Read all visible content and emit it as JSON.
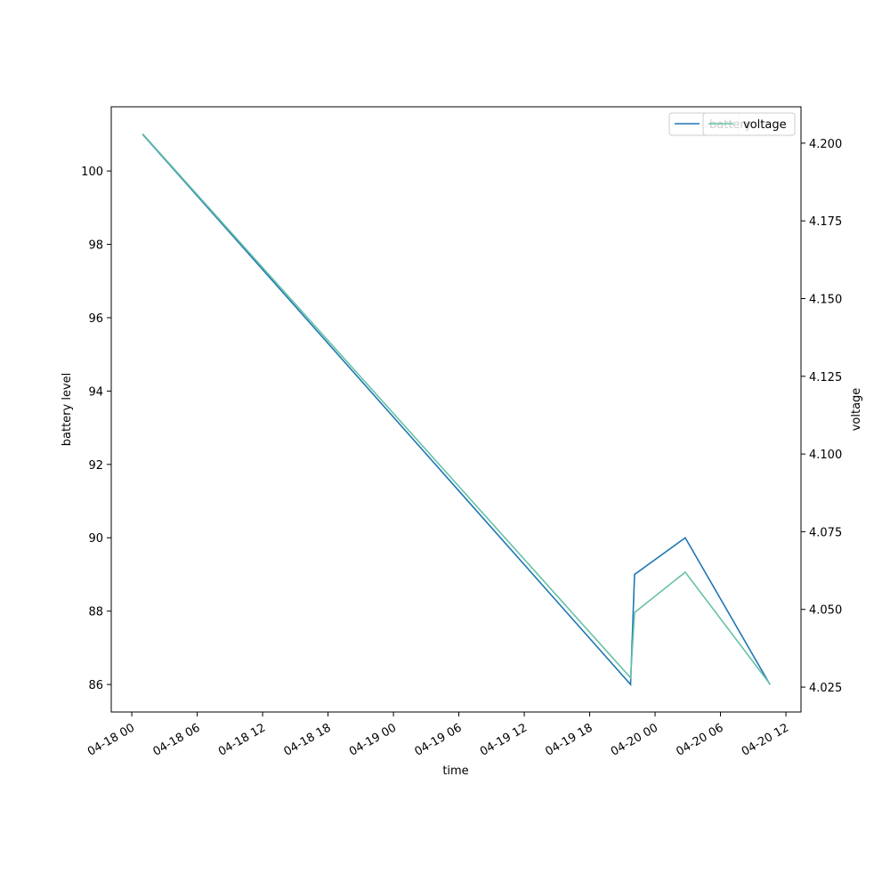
{
  "chart_data": {
    "type": "line",
    "x": [
      "04-18 01:00",
      "04-19 21:45",
      "04-19 22:07",
      "04-20 02:46",
      "04-20 10:32"
    ],
    "series": [
      {
        "name": "battery",
        "color": "#1f77b4",
        "values": [
          101,
          86,
          89,
          90,
          86
        ]
      },
      {
        "name": "voltage",
        "color": "#66c2a5",
        "axis": "y2",
        "values": [
          4.203,
          4.028,
          4.049,
          4.062,
          4.026
        ]
      }
    ],
    "xlabel": "time",
    "ylabel": "battery level",
    "y2label": "voltage",
    "xlim": [
      "04-17 22:07",
      "04-20 13:23"
    ],
    "xticks": [
      "04-18 00",
      "04-18 06",
      "04-18 12",
      "04-18 18",
      "04-19 00",
      "04-19 06",
      "04-19 12",
      "04-19 18",
      "04-20 00",
      "04-20 06",
      "04-20 12"
    ],
    "ylim": [
      85.25,
      101.75
    ],
    "yticks": [
      86,
      88,
      90,
      92,
      94,
      96,
      98,
      100
    ],
    "y2lim": [
      4.017,
      4.2117
    ],
    "y2ticks": [
      4.025,
      {
        "value": 4.05,
        "label": "4.050"
      },
      4.075,
      {
        "value": 4.1,
        "label": "4.100"
      },
      4.125,
      {
        "value": 4.15,
        "label": "4.150"
      },
      4.175,
      {
        "value": 4.2,
        "label": "4.200"
      }
    ],
    "legend": "upper right"
  }
}
